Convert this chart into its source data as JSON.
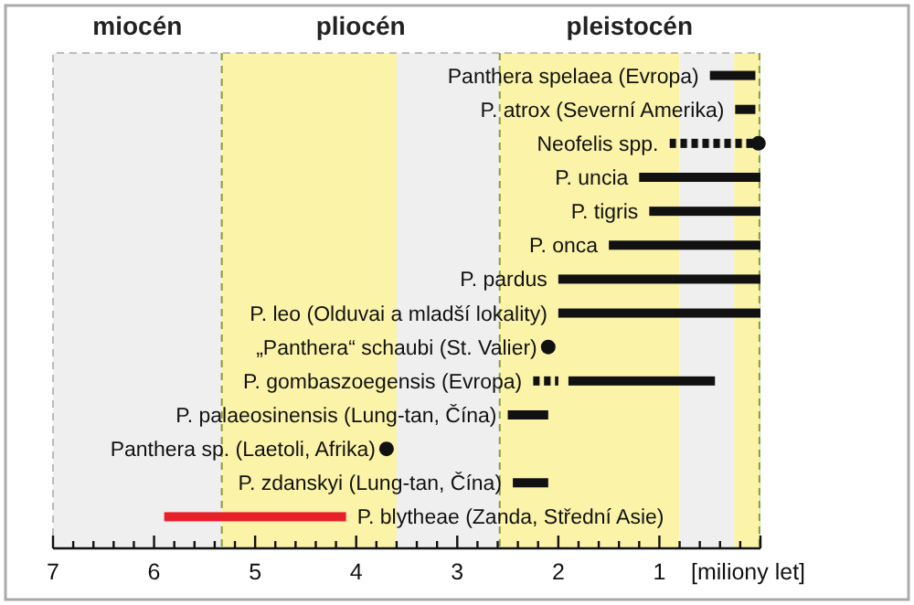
{
  "chart_data": {
    "type": "bar",
    "orientation": "horizontal",
    "categories": [
      "Panthera spelaea (Evropa)",
      "P. atrox (Severní Amerika)",
      "Neofelis spp.",
      "P. uncia",
      "P. tigris",
      "P. onca",
      "P. pardus",
      "P. leo (Olduvai a mladší lokality)",
      "„Panthera“ schaubi (St. Valier)",
      "P. gombaszoegensis (Evropa)",
      "P. palaeosinensis (Lung-tan, Čína)",
      "Panthera sp. (Laetoli, Afrika)",
      "P. zdanskyi (Lung-tan, Čína)",
      "P. blytheae (Zanda, Střední Asie)"
    ],
    "series": [
      {
        "colors": [
          "#111111",
          "#111111",
          null,
          "#111111",
          "#111111",
          "#111111",
          "#111111",
          "#111111",
          null,
          "#111111",
          "#111111",
          null,
          "#111111",
          "#e8202a"
        ],
        "base": [
          0.05,
          0.05,
          null,
          0,
          0,
          0,
          0,
          0,
          null,
          0.45,
          2.1,
          null,
          2.1,
          4.1
        ],
        "values": [
          0.45,
          0.2,
          null,
          1.2,
          1.1,
          1.5,
          2,
          2,
          null,
          1.45,
          0.4,
          null,
          0.35,
          1.8
        ]
      },
      {
        "line_style": "dotted",
        "color": "#111111",
        "base": [
          null,
          null,
          0.05,
          null,
          null,
          null,
          null,
          null,
          null,
          2.0,
          null,
          null,
          null,
          null
        ],
        "values": [
          null,
          null,
          0.85,
          null,
          null,
          null,
          null,
          null,
          null,
          0.25,
          null,
          null,
          null,
          null
        ]
      },
      {
        "type": "scatter",
        "marker": "circle",
        "color": "#111111",
        "values": [
          null,
          null,
          0.02,
          null,
          null,
          null,
          null,
          null,
          2.1,
          null,
          null,
          3.7,
          null,
          null
        ]
      }
    ],
    "xlim": [
      7,
      0
    ],
    "xticks": [
      7,
      {
        "value": 6.8,
        "label": null
      },
      {
        "value": 6.6,
        "label": null
      },
      {
        "value": 6.4,
        "label": null
      },
      {
        "value": 6.2,
        "label": null
      },
      6,
      {
        "value": 5.8,
        "label": null
      },
      {
        "value": 5.6,
        "label": null
      },
      {
        "value": 5.4,
        "label": null
      },
      {
        "value": 5.2,
        "label": null
      },
      5,
      {
        "value": 4.8,
        "label": null
      },
      {
        "value": 4.6,
        "label": null
      },
      {
        "value": 4.4,
        "label": null
      },
      {
        "value": 4.2,
        "label": null
      },
      4,
      {
        "value": 3.8,
        "label": null
      },
      {
        "value": 3.6,
        "label": null
      },
      {
        "value": 3.4,
        "label": null
      },
      {
        "value": 3.2,
        "label": null
      },
      3,
      {
        "value": 2.8,
        "label": null
      },
      {
        "value": 2.6,
        "label": null
      },
      {
        "value": 2.4,
        "label": null
      },
      {
        "value": 2.2,
        "label": null
      },
      2,
      {
        "value": 1.8,
        "label": null
      },
      {
        "value": 1.6,
        "label": null
      },
      {
        "value": 1.4,
        "label": null
      },
      {
        "value": 1.2,
        "label": null
      },
      1,
      {
        "value": 0.8,
        "label": null
      },
      {
        "value": 0.6,
        "label": null
      },
      {
        "value": 0.4,
        "label": null
      },
      {
        "value": 0.2,
        "label": null
      },
      {
        "value": 0,
        "label": null
      }
    ],
    "xlabel": "[miliony let]",
    "bands": [
      {
        "axis": "x",
        "from": 7,
        "to": 5.33,
        "color": "#efefef"
      },
      {
        "axis": "x",
        "from": 5.33,
        "to": 3.6,
        "color": "#fbf3a8"
      },
      {
        "axis": "x",
        "from": 3.6,
        "to": 2.58,
        "color": "#efefef"
      },
      {
        "axis": "x",
        "from": 2.58,
        "to": 0.8,
        "color": "#fbf3a8"
      },
      {
        "axis": "x",
        "from": 0.8,
        "to": 0.26,
        "color": "#efefef"
      },
      {
        "axis": "x",
        "from": 0.26,
        "to": 0.01,
        "color": "#fbf3a8"
      },
      {
        "axis": "x",
        "from": 0.01,
        "to": 0,
        "color": "#c8e0b0"
      }
    ],
    "annotations": [
      "miocén",
      "pliocén",
      "pleistocén"
    ],
    "ref_lines": [
      {
        "axis": "x",
        "value": 5.33,
        "color": "#8a9a3a",
        "line_style": "dashed"
      },
      {
        "axis": "x",
        "value": 2.58,
        "color": "#8a9a3a",
        "line_style": "dashed"
      },
      {
        "axis": "x",
        "value": 0.01,
        "color": "#8a9a3a",
        "line_style": "dashed"
      }
    ],
    "grid": false
  }
}
